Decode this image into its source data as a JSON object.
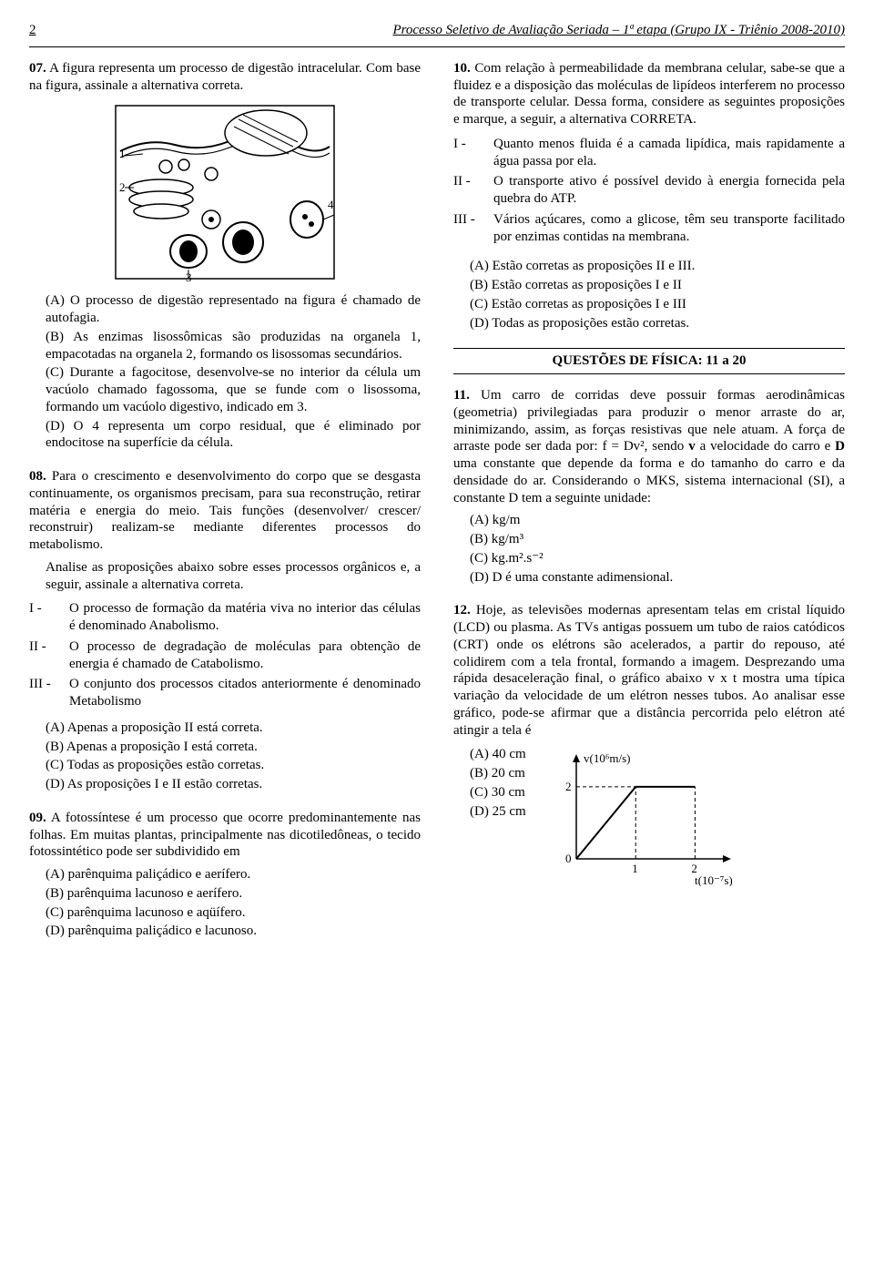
{
  "header": {
    "page_number": "2",
    "title": "Processo Seletivo de Avaliação Seriada – 1ª etapa (Grupo IX - Triênio 2008-2010)"
  },
  "q07": {
    "num": "07.",
    "stem": "A figura representa um processo de digestão intracelular. Com base na figura, assinale a alternativa correta.",
    "figure": {
      "markers": [
        "1",
        "2",
        "3",
        "4"
      ]
    },
    "a": "(A) O processo de digestão representado na figura é chamado de autofagia.",
    "b": "(B) As enzimas lisossômicas são produzidas na organela 1, empacotadas na organela 2, formando os lisossomas secundários.",
    "c": "(C) Durante a fagocitose, desenvolve-se no interior da célula um vacúolo chamado fagossoma, que se funde com o lisossoma, formando um vacúolo digestivo, indicado em 3.",
    "d": "(D) O 4 representa um corpo residual, que é eliminado por endocitose na superfície da célula."
  },
  "q08": {
    "num": "08.",
    "stem": "Para o crescimento e desenvolvimento do corpo que se desgasta continuamente, os organismos precisam, para sua reconstrução, retirar matéria e energia do meio. Tais funções (desenvolver/ crescer/ reconstruir) realizam-se mediante diferentes processos do metabolismo.",
    "instr": "Analise as proposições abaixo sobre esses processos orgânicos e, a seguir, assinale a alternativa correta.",
    "p1_label": "I -",
    "p1": "O processo de formação da matéria viva no interior das células é denominado Anabolismo.",
    "p2_label": "II -",
    "p2": "O processo de degradação de moléculas para obtenção de energia é chamado de Catabolismo.",
    "p3_label": "III -",
    "p3": "O conjunto dos processos citados anteriormente é denominado Metabolismo",
    "a": "(A) Apenas a proposição II está correta.",
    "b": "(B) Apenas a proposição I está correta.",
    "c": "(C) Todas as proposições estão corretas.",
    "d": "(D) As proposições I e II estão corretas."
  },
  "q09": {
    "num": "09.",
    "stem": "A fotossíntese é um processo que ocorre predominantemente nas folhas. Em muitas plantas, principalmente nas dicotiledôneas, o tecido fotossintético pode ser subdividido em",
    "a": "(A) parênquima paliçádico e aerífero.",
    "b": "(B) parênquima lacunoso e aerífero.",
    "c": "(C) parênquima lacunoso e aqüífero.",
    "d": "(D) parênquima paliçádico e lacunoso."
  },
  "q10": {
    "num": "10.",
    "stem": "Com relação à permeabilidade da membrana celular, sabe-se que a fluidez e a disposição das moléculas de lipídeos interferem no processo de transporte celular. Dessa forma, considere as seguintes proposições e marque, a seguir, a alternativa CORRETA.",
    "p1_label": "I -",
    "p1": "Quanto menos fluida é a camada lipídica, mais rapidamente a água passa por ela.",
    "p2_label": "II -",
    "p2": "O transporte ativo é possível devido à energia fornecida pela quebra do ATP.",
    "p3_label": "III -",
    "p3": "Vários açúcares, como a glicose, têm seu transporte facilitado por enzimas contidas na membrana.",
    "a": "(A) Estão corretas as proposições II e III.",
    "b": "(B) Estão corretas as proposições I e II",
    "c": "(C) Estão corretas as proposições I e III",
    "d": "(D) Todas as proposições estão corretas."
  },
  "section_fisica": "QUESTÕES DE FÍSICA: 11 a 20",
  "q11": {
    "num": "11.",
    "stem_1": "Um carro de corridas deve possuir formas aerodinâmicas (geometria) privilegiadas para produzir o menor arraste do ar, minimizando, assim, as forças resistivas que nele atuam. A força de arraste pode ser dada por: f = Dv², sendo ",
    "stem_v": "v",
    "stem_2": " a velocidade do carro e ",
    "stem_d": "D",
    "stem_3": " uma constante que depende da forma e do tamanho do carro e da densidade do ar. Considerando o MKS, sistema internacional (SI), a constante D tem a seguinte unidade:",
    "a": "(A) kg/m",
    "b": "(B) kg/m³",
    "c": "(C) kg.m².s⁻²",
    "d": "(D) D é uma constante adimensional."
  },
  "q12": {
    "num": "12.",
    "stem": "Hoje, as televisões modernas apresentam telas em cristal líquido (LCD) ou plasma. As TVs antigas possuem um tubo de raios catódicos (CRT) onde os elétrons são acelerados, a partir do repouso, até colidirem com a tela frontal, formando a imagem. Desprezando uma rápida desaceleração final, o gráfico abaixo v x t mostra uma típica variação da velocidade de um elétron nesses tubos. Ao analisar esse gráfico, pode-se afirmar que a distância percorrida pelo elétron até atingir a tela é",
    "a": "(A) 40 cm",
    "b": "(B) 20 cm",
    "c": "(C) 30 cm",
    "d": "(D) 25 cm",
    "chart": {
      "type": "line",
      "y_label": "v(10⁶m/s)",
      "x_label": "t(10⁻⁷s)",
      "y_ticks": [
        "0",
        "2"
      ],
      "x_ticks": [
        "1",
        "2"
      ],
      "axis_color": "#000000",
      "dash_color": "#000000",
      "points": [
        [
          0,
          0
        ],
        [
          1,
          2
        ],
        [
          2,
          2
        ]
      ],
      "xlim": [
        0,
        2.3
      ],
      "ylim": [
        0,
        2.4
      ]
    }
  }
}
